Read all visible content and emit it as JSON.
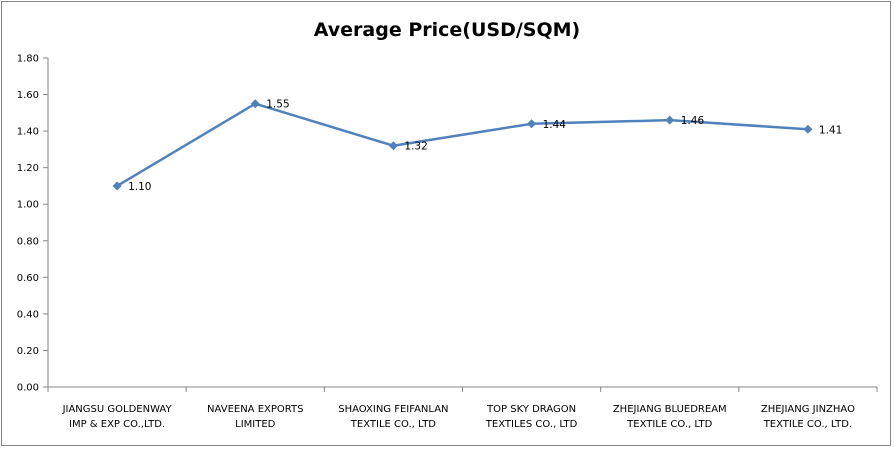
{
  "chart_data": {
    "type": "line",
    "title": "Average Price(USD/SQM)",
    "xlabel": "",
    "ylabel": "",
    "ylim": [
      0,
      1.8
    ],
    "ytick_step": 0.2,
    "yticks": [
      "0.00",
      "0.20",
      "0.40",
      "0.60",
      "0.80",
      "1.00",
      "1.20",
      "1.40",
      "1.60",
      "1.80"
    ],
    "categories": [
      [
        "JIANGSU GOLDENWAY",
        "IMP & EXP CO.,LTD."
      ],
      [
        "NAVEENA EXPORTS",
        "LIMITED"
      ],
      [
        "SHAOXING FEIFANLAN",
        "TEXTILE CO., LTD"
      ],
      [
        "TOP SKY DRAGON",
        "TEXTILES CO., LTD"
      ],
      [
        "ZHEJIANG BLUEDREAM",
        "TEXTILE CO., LTD"
      ],
      [
        "ZHEJIANG JINZHAO",
        "TEXTILE CO., LTD."
      ]
    ],
    "series": [
      {
        "values": [
          1.1,
          1.55,
          1.32,
          1.44,
          1.46,
          1.41
        ],
        "data_labels": [
          "1.10",
          "1.55",
          "1.32",
          "1.44",
          "1.46",
          "1.41"
        ],
        "color": "#4f81bd",
        "marker": "diamond"
      }
    ],
    "grid": false,
    "legend": "none"
  }
}
